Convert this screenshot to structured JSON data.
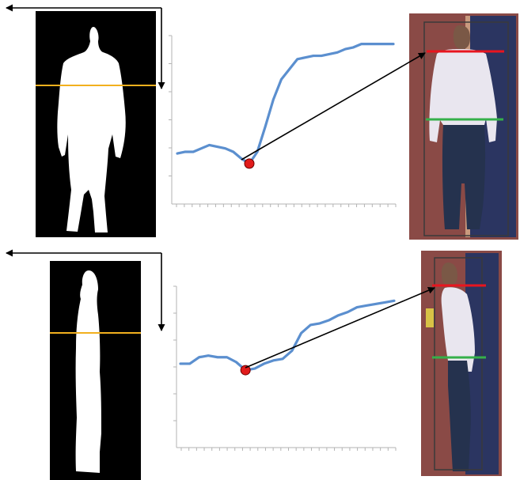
{
  "colors": {
    "background": "#ffffff",
    "silhouette_bg": "#000000",
    "silhouette_fg": "#ffffff",
    "scan_line": "#f2b01e",
    "curve": "#5b8fcf",
    "axis": "#b3b3b3",
    "minimum_marker": "#e11b1b",
    "arrow": "#000000",
    "photo_wall": "#8a4a46",
    "photo_door": "#2b3561",
    "photo_shirt": "#e9e6ef",
    "photo_jeans": "#25324e",
    "head_line": "#e8151f",
    "waist_line": "#35b04a",
    "bbox": "#3a3a3a"
  },
  "chart_data": [
    {
      "type": "line",
      "view": "back",
      "series": [
        {
          "values": [
            0.3,
            0.31,
            0.31,
            0.33,
            0.35,
            0.34,
            0.33,
            0.31,
            0.27,
            0.24,
            0.31,
            0.46,
            0.62,
            0.74,
            0.8,
            0.86,
            0.87,
            0.88,
            0.88,
            0.89,
            0.9,
            0.92,
            0.93,
            0.95,
            0.95,
            0.95,
            0.95,
            0.95
          ]
        }
      ],
      "minimum_index": 9,
      "xlim": [
        0,
        27
      ],
      "ylim": [
        0,
        1
      ],
      "grid": false
    },
    {
      "type": "line",
      "view": "side",
      "series": [
        {
          "values": [
            0.52,
            0.52,
            0.56,
            0.57,
            0.56,
            0.56,
            0.53,
            0.48,
            0.49,
            0.52,
            0.54,
            0.55,
            0.6,
            0.71,
            0.76,
            0.77,
            0.79,
            0.82,
            0.84,
            0.87,
            0.88,
            0.89,
            0.9,
            0.91
          ]
        }
      ],
      "minimum_index": 7,
      "xlim": [
        0,
        23
      ],
      "ylim": [
        0,
        1
      ],
      "grid": false
    }
  ],
  "panels": [
    {
      "view": "back"
    },
    {
      "view": "side"
    }
  ]
}
